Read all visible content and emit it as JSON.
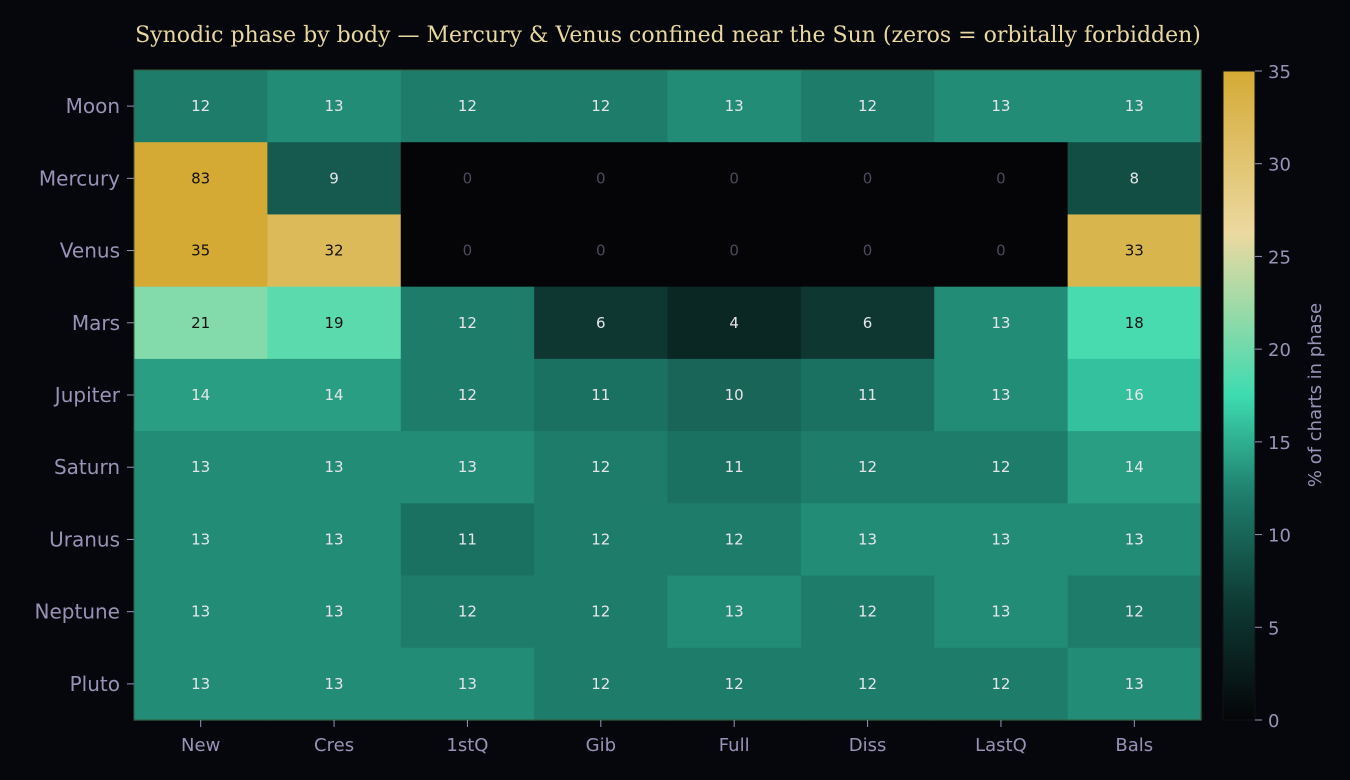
{
  "chart_data": {
    "type": "heatmap",
    "title": "Synodic phase by body — Mercury & Venus confined near the Sun (zeros = orbitally forbidden)",
    "x_categories": [
      "New",
      "Cres",
      "1stQ",
      "Gib",
      "Full",
      "Diss",
      "LastQ",
      "Bals"
    ],
    "y_categories": [
      "Moon",
      "Mercury",
      "Venus",
      "Mars",
      "Jupiter",
      "Saturn",
      "Uranus",
      "Neptune",
      "Pluto"
    ],
    "values": [
      [
        12,
        13,
        12,
        12,
        13,
        12,
        13,
        13
      ],
      [
        83,
        9,
        0,
        0,
        0,
        0,
        0,
        8
      ],
      [
        35,
        32,
        0,
        0,
        0,
        0,
        0,
        33
      ],
      [
        21,
        19,
        12,
        6,
        4,
        6,
        13,
        18
      ],
      [
        14,
        14,
        12,
        11,
        10,
        11,
        13,
        16
      ],
      [
        13,
        13,
        13,
        12,
        11,
        12,
        12,
        14
      ],
      [
        13,
        13,
        11,
        12,
        12,
        13,
        13,
        13
      ],
      [
        13,
        13,
        12,
        12,
        13,
        12,
        13,
        12
      ],
      [
        13,
        13,
        13,
        12,
        12,
        12,
        12,
        13
      ]
    ],
    "colorbar": {
      "label": "% of charts in phase",
      "range": [
        0,
        35
      ],
      "ticks": [
        0,
        5,
        10,
        15,
        20,
        25,
        30,
        35
      ],
      "colors": [
        "#050508",
        "#0e3a34",
        "#1f7f6d",
        "#3ddbb0",
        "#ecd9a0",
        "#d4aa35"
      ],
      "stops": [
        0,
        0.18,
        0.35,
        0.5,
        0.75,
        1
      ]
    },
    "grid": false,
    "legend": "colorbar-right"
  }
}
